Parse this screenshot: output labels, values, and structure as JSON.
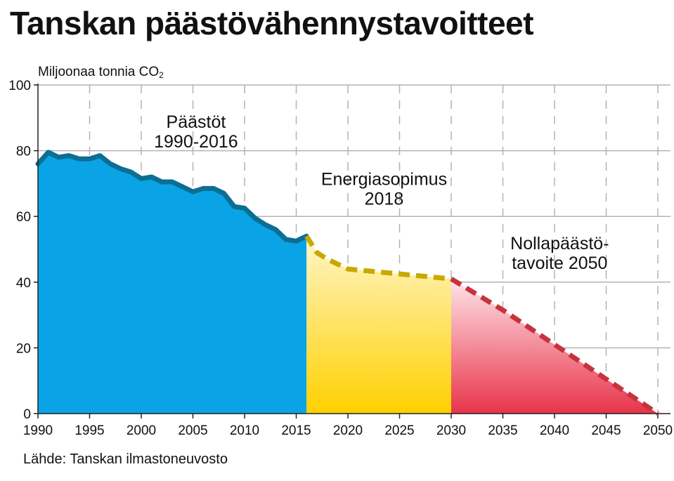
{
  "title": "Tanskan päästövähennystavoitteet",
  "source": "Lähde: Tanskan ilmastoneuvosto",
  "chart_data": {
    "type": "area",
    "ylabel_main": "Miljoonaa tonnia CO",
    "ylabel_sub": "2",
    "xlim": [
      1990,
      2051
    ],
    "ylim": [
      0,
      100
    ],
    "x_ticks": [
      1990,
      1995,
      2000,
      2005,
      2010,
      2015,
      2020,
      2025,
      2030,
      2035,
      2040,
      2045,
      2050
    ],
    "y_ticks": [
      0,
      20,
      40,
      60,
      80,
      100
    ],
    "grid": true,
    "series": [
      {
        "label_line1": "Päästöt",
        "label_line2": "1990-2016",
        "color": "#0aa4e6",
        "line_color": "#0b6e94",
        "style": "solid",
        "points": [
          [
            1990,
            76
          ],
          [
            1991,
            79.5
          ],
          [
            1992,
            78
          ],
          [
            1993,
            78.5
          ],
          [
            1994,
            77.5
          ],
          [
            1995,
            77.5
          ],
          [
            1996,
            78.5
          ],
          [
            1997,
            76
          ],
          [
            1998,
            74.5
          ],
          [
            1999,
            73.5
          ],
          [
            2000,
            71.5
          ],
          [
            2001,
            72
          ],
          [
            2002,
            70.5
          ],
          [
            2003,
            70.5
          ],
          [
            2004,
            69
          ],
          [
            2005,
            67.5
          ],
          [
            2006,
            68.5
          ],
          [
            2007,
            68.5
          ],
          [
            2008,
            67
          ],
          [
            2009,
            63
          ],
          [
            2010,
            62.5
          ],
          [
            2011,
            59.5
          ],
          [
            2012,
            57.5
          ],
          [
            2013,
            56
          ],
          [
            2014,
            53
          ],
          [
            2015,
            52.5
          ],
          [
            2016,
            54
          ]
        ]
      },
      {
        "label_line1": "Energiasopimus",
        "label_line2": "2018",
        "color_top": "#fff6c8",
        "color_bottom": "#ffd000",
        "line_color": "#c9a800",
        "style": "dashed",
        "points": [
          [
            2016,
            54
          ],
          [
            2017,
            49
          ],
          [
            2018,
            47
          ],
          [
            2020,
            44
          ],
          [
            2025,
            42.5
          ],
          [
            2030,
            41
          ]
        ]
      },
      {
        "label_line1": "Nollapäästö-",
        "label_line2": "tavoite 2050",
        "color_top": "#ffe4ea",
        "color_bottom": "#e8344a",
        "line_color": "#c8323d",
        "style": "dashed",
        "points": [
          [
            2030,
            41
          ],
          [
            2035,
            31.5
          ],
          [
            2040,
            21
          ],
          [
            2045,
            10.5
          ],
          [
            2050,
            0
          ]
        ]
      }
    ]
  }
}
